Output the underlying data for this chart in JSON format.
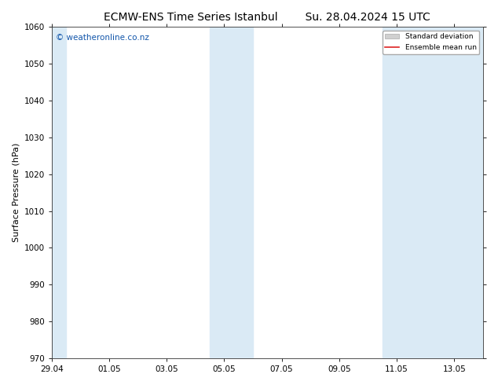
{
  "title_left": "ECMW-ENS Time Series Istanbul",
  "title_right": "Su. 28.04.2024 15 UTC",
  "ylabel": "Surface Pressure (hPa)",
  "ylim": [
    970,
    1060
  ],
  "yticks": [
    970,
    980,
    990,
    1000,
    1010,
    1020,
    1030,
    1040,
    1050,
    1060
  ],
  "xtick_labels": [
    "29.04",
    "01.05",
    "03.05",
    "05.05",
    "07.05",
    "09.05",
    "11.05",
    "13.05"
  ],
  "xtick_positions": [
    0,
    2,
    4,
    6,
    8,
    10,
    12,
    14
  ],
  "x_min": 0,
  "x_max": 15,
  "shaded_bands": [
    {
      "x_start": -0.1,
      "x_end": 0.5,
      "color": "#daeaf5"
    },
    {
      "x_start": 5.5,
      "x_end": 6.5,
      "color": "#daeaf5"
    },
    {
      "x_start": 6.5,
      "x_end": 7.0,
      "color": "#daeaf5"
    },
    {
      "x_start": 11.5,
      "x_end": 12.5,
      "color": "#daeaf5"
    },
    {
      "x_start": 12.5,
      "x_end": 15.1,
      "color": "#daeaf5"
    }
  ],
  "watermark_text": "© weatheronline.co.nz",
  "watermark_color": "#1155aa",
  "watermark_fontsize": 7.5,
  "legend_std_label": "Standard deviation",
  "legend_mean_label": "Ensemble mean run",
  "legend_std_color": "#d0d0d0",
  "legend_mean_color": "#dd2222",
  "background_color": "#ffffff",
  "plot_bg_color": "#ffffff",
  "title_fontsize": 10,
  "ylabel_fontsize": 8,
  "tick_fontsize": 7.5,
  "spine_color": "#333333"
}
